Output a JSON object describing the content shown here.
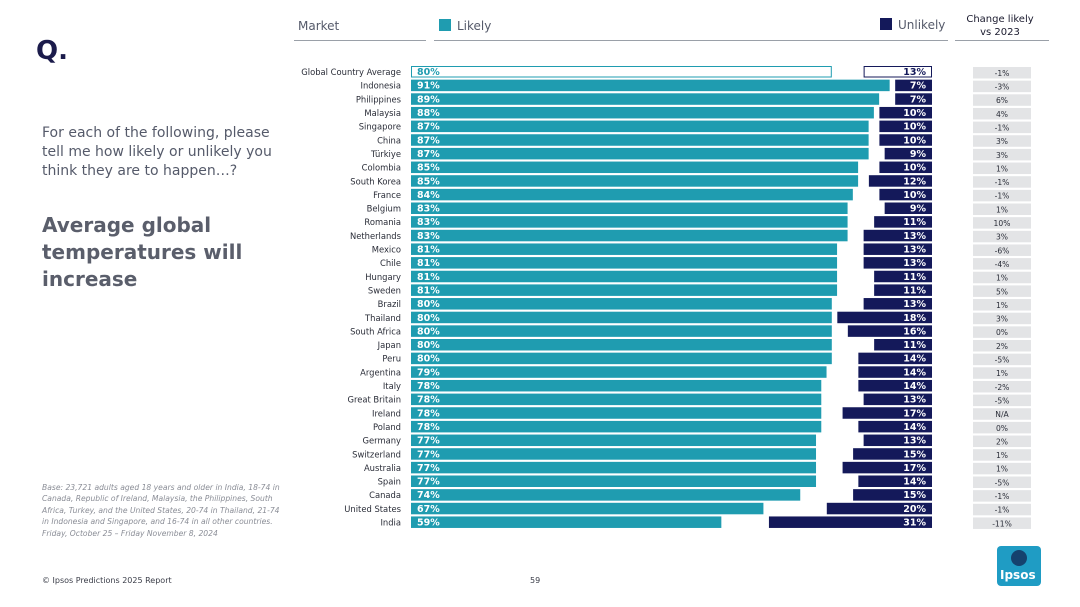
{
  "page": {
    "q_mark": "Q.",
    "question": "For each of the following, please tell me how likely or unlikely you think they are to happen…?",
    "statement": "Average global temperatures will increase",
    "base_note": "Base: 23,721 adults aged 18 years and older in India, 18-74 in Canada, Republic of Ireland, Malaysia, the Philippines, South Africa, Turkey, and the United States, 20-74 in Thailand, 21-74 in Indonesia and Singapore, and 16-74 in all other countries. Friday, October 25 – Friday November 8, 2024",
    "footer": "© Ipsos Predictions 2025 Report",
    "page_number": "59",
    "logo_text": "Ipsos"
  },
  "header": {
    "market": "Market",
    "likely": "Likely",
    "unlikely": "Unlikely",
    "change": "Change likely vs 2023"
  },
  "colors": {
    "likely": "#1f9cb0",
    "unlikely": "#14195a",
    "change_bg": "#e3e4e6"
  },
  "chart_data": {
    "type": "bar",
    "title": "Average global temperatures will increase",
    "series": [
      {
        "name": "Likely",
        "values": [
          80,
          91,
          89,
          88,
          87,
          87,
          87,
          85,
          85,
          84,
          83,
          83,
          83,
          81,
          81,
          81,
          81,
          80,
          80,
          80,
          80,
          80,
          79,
          78,
          78,
          78,
          78,
          77,
          77,
          77,
          77,
          74,
          67,
          59
        ]
      },
      {
        "name": "Unlikely",
        "values": [
          13,
          7,
          7,
          10,
          10,
          10,
          9,
          10,
          12,
          10,
          9,
          11,
          13,
          13,
          13,
          11,
          11,
          13,
          18,
          16,
          11,
          14,
          14,
          14,
          13,
          17,
          14,
          13,
          15,
          17,
          14,
          15,
          20,
          31
        ]
      }
    ],
    "categories": [
      "Global Country Average",
      "Indonesia",
      "Philippines",
      "Malaysia",
      "Singapore",
      "China",
      "Türkiye",
      "Colombia",
      "South Korea",
      "France",
      "Belgium",
      "Romania",
      "Netherlands",
      "Mexico",
      "Chile",
      "Hungary",
      "Sweden",
      "Brazil",
      "Thailand",
      "South Africa",
      "Japan",
      "Peru",
      "Argentina",
      "Italy",
      "Great Britain",
      "Ireland",
      "Poland",
      "Germany",
      "Switzerland",
      "Australia",
      "Spain",
      "Canada",
      "United States",
      "India"
    ],
    "change_vs_2023": [
      "-1%",
      "-3%",
      "6%",
      "4%",
      "-1%",
      "3%",
      "3%",
      "1%",
      "-1%",
      "-1%",
      "1%",
      "10%",
      "3%",
      "-6%",
      "-4%",
      "1%",
      "5%",
      "1%",
      "3%",
      "0%",
      "2%",
      "-5%",
      "1%",
      "-2%",
      "-5%",
      "N/A",
      "0%",
      "2%",
      "1%",
      "1%",
      "-5%",
      "-1%",
      "-1%",
      "-11%"
    ],
    "xlim": [
      0,
      100
    ]
  }
}
